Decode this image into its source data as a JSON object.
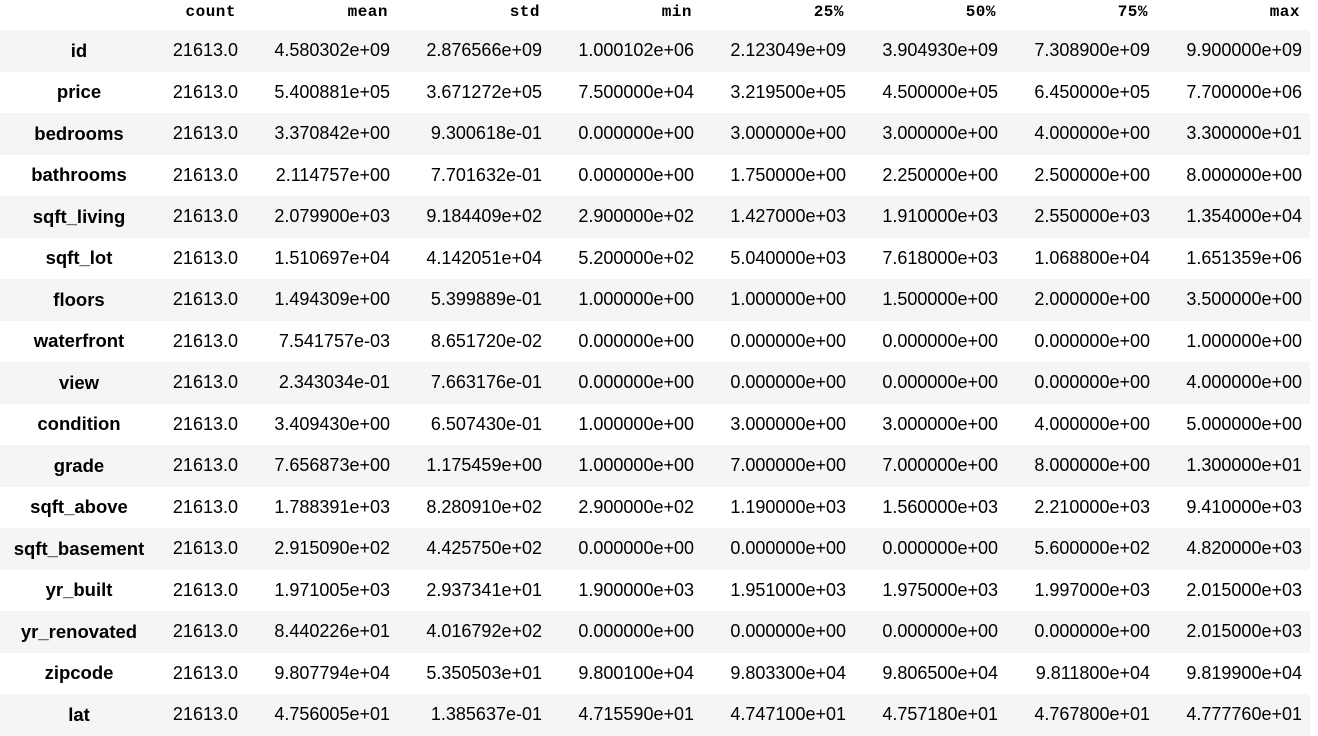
{
  "columns": [
    "",
    "count",
    "mean",
    "std",
    "min",
    "25%",
    "50%",
    "75%",
    "max"
  ],
  "rows": [
    {
      "name": "id",
      "values": [
        "21613.0",
        "4.580302e+09",
        "2.876566e+09",
        "1.000102e+06",
        "2.123049e+09",
        "3.904930e+09",
        "7.308900e+09",
        "9.900000e+09"
      ]
    },
    {
      "name": "price",
      "values": [
        "21613.0",
        "5.400881e+05",
        "3.671272e+05",
        "7.500000e+04",
        "3.219500e+05",
        "4.500000e+05",
        "6.450000e+05",
        "7.700000e+06"
      ]
    },
    {
      "name": "bedrooms",
      "values": [
        "21613.0",
        "3.370842e+00",
        "9.300618e-01",
        "0.000000e+00",
        "3.000000e+00",
        "3.000000e+00",
        "4.000000e+00",
        "3.300000e+01"
      ]
    },
    {
      "name": "bathrooms",
      "values": [
        "21613.0",
        "2.114757e+00",
        "7.701632e-01",
        "0.000000e+00",
        "1.750000e+00",
        "2.250000e+00",
        "2.500000e+00",
        "8.000000e+00"
      ]
    },
    {
      "name": "sqft_living",
      "values": [
        "21613.0",
        "2.079900e+03",
        "9.184409e+02",
        "2.900000e+02",
        "1.427000e+03",
        "1.910000e+03",
        "2.550000e+03",
        "1.354000e+04"
      ]
    },
    {
      "name": "sqft_lot",
      "values": [
        "21613.0",
        "1.510697e+04",
        "4.142051e+04",
        "5.200000e+02",
        "5.040000e+03",
        "7.618000e+03",
        "1.068800e+04",
        "1.651359e+06"
      ]
    },
    {
      "name": "floors",
      "values": [
        "21613.0",
        "1.494309e+00",
        "5.399889e-01",
        "1.000000e+00",
        "1.000000e+00",
        "1.500000e+00",
        "2.000000e+00",
        "3.500000e+00"
      ]
    },
    {
      "name": "waterfront",
      "values": [
        "21613.0",
        "7.541757e-03",
        "8.651720e-02",
        "0.000000e+00",
        "0.000000e+00",
        "0.000000e+00",
        "0.000000e+00",
        "1.000000e+00"
      ]
    },
    {
      "name": "view",
      "values": [
        "21613.0",
        "2.343034e-01",
        "7.663176e-01",
        "0.000000e+00",
        "0.000000e+00",
        "0.000000e+00",
        "0.000000e+00",
        "4.000000e+00"
      ]
    },
    {
      "name": "condition",
      "values": [
        "21613.0",
        "3.409430e+00",
        "6.507430e-01",
        "1.000000e+00",
        "3.000000e+00",
        "3.000000e+00",
        "4.000000e+00",
        "5.000000e+00"
      ]
    },
    {
      "name": "grade",
      "values": [
        "21613.0",
        "7.656873e+00",
        "1.175459e+00",
        "1.000000e+00",
        "7.000000e+00",
        "7.000000e+00",
        "8.000000e+00",
        "1.300000e+01"
      ]
    },
    {
      "name": "sqft_above",
      "values": [
        "21613.0",
        "1.788391e+03",
        "8.280910e+02",
        "2.900000e+02",
        "1.190000e+03",
        "1.560000e+03",
        "2.210000e+03",
        "9.410000e+03"
      ]
    },
    {
      "name": "sqft_basement",
      "values": [
        "21613.0",
        "2.915090e+02",
        "4.425750e+02",
        "0.000000e+00",
        "0.000000e+00",
        "0.000000e+00",
        "5.600000e+02",
        "4.820000e+03"
      ]
    },
    {
      "name": "yr_built",
      "values": [
        "21613.0",
        "1.971005e+03",
        "2.937341e+01",
        "1.900000e+03",
        "1.951000e+03",
        "1.975000e+03",
        "1.997000e+03",
        "2.015000e+03"
      ]
    },
    {
      "name": "yr_renovated",
      "values": [
        "21613.0",
        "8.440226e+01",
        "4.016792e+02",
        "0.000000e+00",
        "0.000000e+00",
        "0.000000e+00",
        "0.000000e+00",
        "2.015000e+03"
      ]
    },
    {
      "name": "zipcode",
      "values": [
        "21613.0",
        "9.807794e+04",
        "5.350503e+01",
        "9.800100e+04",
        "9.803300e+04",
        "9.806500e+04",
        "9.811800e+04",
        "9.819900e+04"
      ]
    },
    {
      "name": "lat",
      "values": [
        "21613.0",
        "4.756005e+01",
        "1.385637e-01",
        "4.715590e+01",
        "4.747100e+01",
        "4.757180e+01",
        "4.767800e+01",
        "4.777760e+01"
      ]
    }
  ],
  "colors": {
    "stripe": "#f5f5f5",
    "background": "#ffffff",
    "text": "#000000"
  }
}
